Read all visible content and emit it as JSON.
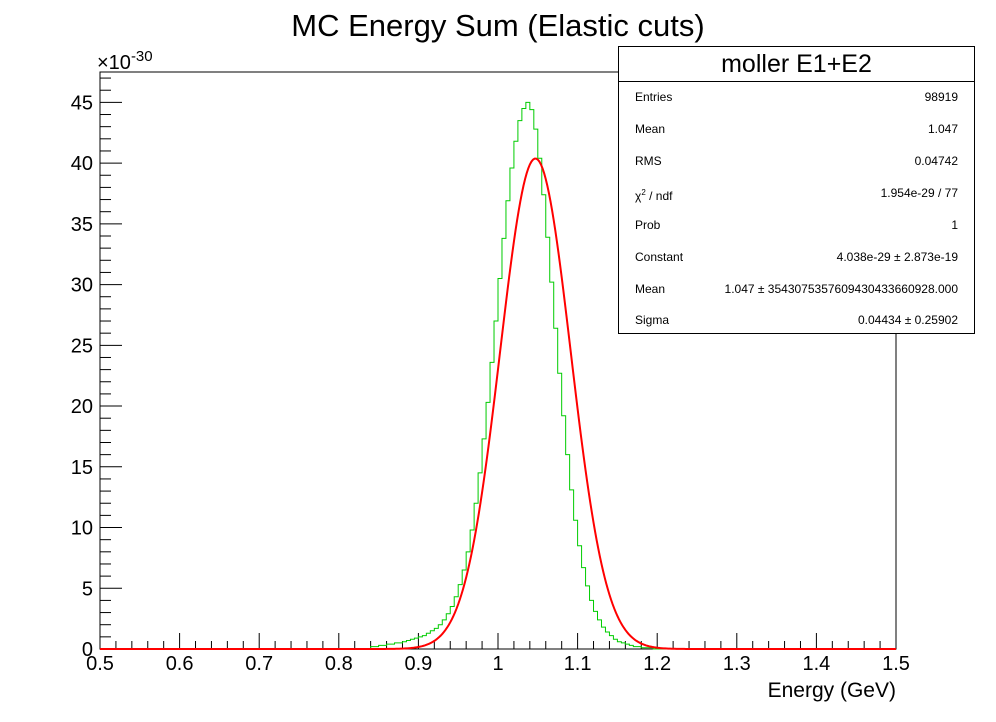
{
  "chart_data": {
    "type": "histogram",
    "title": "MC Energy Sum (Elastic cuts)",
    "xlabel": "Energy (GeV)",
    "ylabel": "",
    "y_exponent_label": "×10",
    "y_exponent_power": "-30",
    "xlim": [
      0.5,
      1.5
    ],
    "ylim": [
      0,
      47.5
    ],
    "x_ticks": [
      "0.5",
      "0.6",
      "0.7",
      "0.8",
      "0.9",
      "1",
      "1.1",
      "1.2",
      "1.3",
      "1.4",
      "1.5"
    ],
    "y_ticks": [
      "0",
      "5",
      "10",
      "15",
      "20",
      "25",
      "30",
      "35",
      "40",
      "45"
    ],
    "grid": false,
    "bin_width": 0.005,
    "series": [
      {
        "kind": "histogram",
        "color": "#00cc00",
        "bins": [
          {
            "x": 0.84,
            "y": 0.2
          },
          {
            "x": 0.845,
            "y": 0.2
          },
          {
            "x": 0.85,
            "y": 0.3
          },
          {
            "x": 0.855,
            "y": 0.3
          },
          {
            "x": 0.86,
            "y": 0.4
          },
          {
            "x": 0.865,
            "y": 0.4
          },
          {
            "x": 0.87,
            "y": 0.5
          },
          {
            "x": 0.875,
            "y": 0.5
          },
          {
            "x": 0.88,
            "y": 0.6
          },
          {
            "x": 0.885,
            "y": 0.7
          },
          {
            "x": 0.89,
            "y": 0.8
          },
          {
            "x": 0.895,
            "y": 0.9
          },
          {
            "x": 0.9,
            "y": 1.0
          },
          {
            "x": 0.905,
            "y": 1.1
          },
          {
            "x": 0.91,
            "y": 1.3
          },
          {
            "x": 0.915,
            "y": 1.5
          },
          {
            "x": 0.92,
            "y": 1.7
          },
          {
            "x": 0.925,
            "y": 2.0
          },
          {
            "x": 0.93,
            "y": 2.4
          },
          {
            "x": 0.935,
            "y": 2.9
          },
          {
            "x": 0.94,
            "y": 3.5
          },
          {
            "x": 0.945,
            "y": 4.3
          },
          {
            "x": 0.95,
            "y": 5.3
          },
          {
            "x": 0.955,
            "y": 6.5
          },
          {
            "x": 0.96,
            "y": 8.0
          },
          {
            "x": 0.965,
            "y": 9.8
          },
          {
            "x": 0.97,
            "y": 12.0
          },
          {
            "x": 0.975,
            "y": 14.5
          },
          {
            "x": 0.98,
            "y": 17.3
          },
          {
            "x": 0.985,
            "y": 20.3
          },
          {
            "x": 0.99,
            "y": 23.6
          },
          {
            "x": 0.995,
            "y": 27.0
          },
          {
            "x": 1.0,
            "y": 30.5
          },
          {
            "x": 1.005,
            "y": 33.8
          },
          {
            "x": 1.01,
            "y": 36.9
          },
          {
            "x": 1.015,
            "y": 39.6
          },
          {
            "x": 1.02,
            "y": 41.8
          },
          {
            "x": 1.025,
            "y": 43.5
          },
          {
            "x": 1.03,
            "y": 44.5
          },
          {
            "x": 1.035,
            "y": 45.0
          },
          {
            "x": 1.04,
            "y": 44.4
          },
          {
            "x": 1.045,
            "y": 42.8
          },
          {
            "x": 1.05,
            "y": 40.4
          },
          {
            "x": 1.055,
            "y": 37.4
          },
          {
            "x": 1.06,
            "y": 33.9
          },
          {
            "x": 1.065,
            "y": 30.2
          },
          {
            "x": 1.07,
            "y": 26.4
          },
          {
            "x": 1.075,
            "y": 22.7
          },
          {
            "x": 1.08,
            "y": 19.2
          },
          {
            "x": 1.085,
            "y": 16.0
          },
          {
            "x": 1.09,
            "y": 13.1
          },
          {
            "x": 1.095,
            "y": 10.6
          },
          {
            "x": 1.1,
            "y": 8.5
          },
          {
            "x": 1.105,
            "y": 6.7
          },
          {
            "x": 1.11,
            "y": 5.2
          },
          {
            "x": 1.115,
            "y": 4.0
          },
          {
            "x": 1.12,
            "y": 3.1
          },
          {
            "x": 1.125,
            "y": 2.4
          },
          {
            "x": 1.13,
            "y": 1.8
          },
          {
            "x": 1.135,
            "y": 1.4
          },
          {
            "x": 1.14,
            "y": 1.1
          },
          {
            "x": 1.145,
            "y": 0.8
          },
          {
            "x": 1.15,
            "y": 0.6
          },
          {
            "x": 1.155,
            "y": 0.5
          },
          {
            "x": 1.16,
            "y": 0.4
          },
          {
            "x": 1.165,
            "y": 0.3
          },
          {
            "x": 1.17,
            "y": 0.2
          },
          {
            "x": 1.175,
            "y": 0.2
          },
          {
            "x": 1.18,
            "y": 0.1
          },
          {
            "x": 1.185,
            "y": 0.1
          },
          {
            "x": 1.19,
            "y": 0.1
          }
        ]
      },
      {
        "kind": "gaussian-fit",
        "color": "#ff0000",
        "constant": 40.38,
        "mean": 1.047,
        "sigma": 0.04434
      }
    ]
  },
  "stats": {
    "title": "moller E1+E2",
    "rows": [
      {
        "label": "Entries",
        "value": "98919"
      },
      {
        "label": "Mean",
        "value": "1.047"
      },
      {
        "label": "RMS",
        "value": "0.04742"
      },
      {
        "label": "χ² / ndf",
        "value": "1.954e-29 / 77"
      },
      {
        "label": "Prob",
        "value": "1"
      },
      {
        "label": "Constant",
        "value": "4.038e-29 ± 2.873e-19"
      },
      {
        "label": "Mean",
        "value": "1.047 ± 354307535760943043366092​8.000"
      },
      {
        "label": "Sigma",
        "value": "0.04434 ± 0.25902"
      }
    ]
  }
}
